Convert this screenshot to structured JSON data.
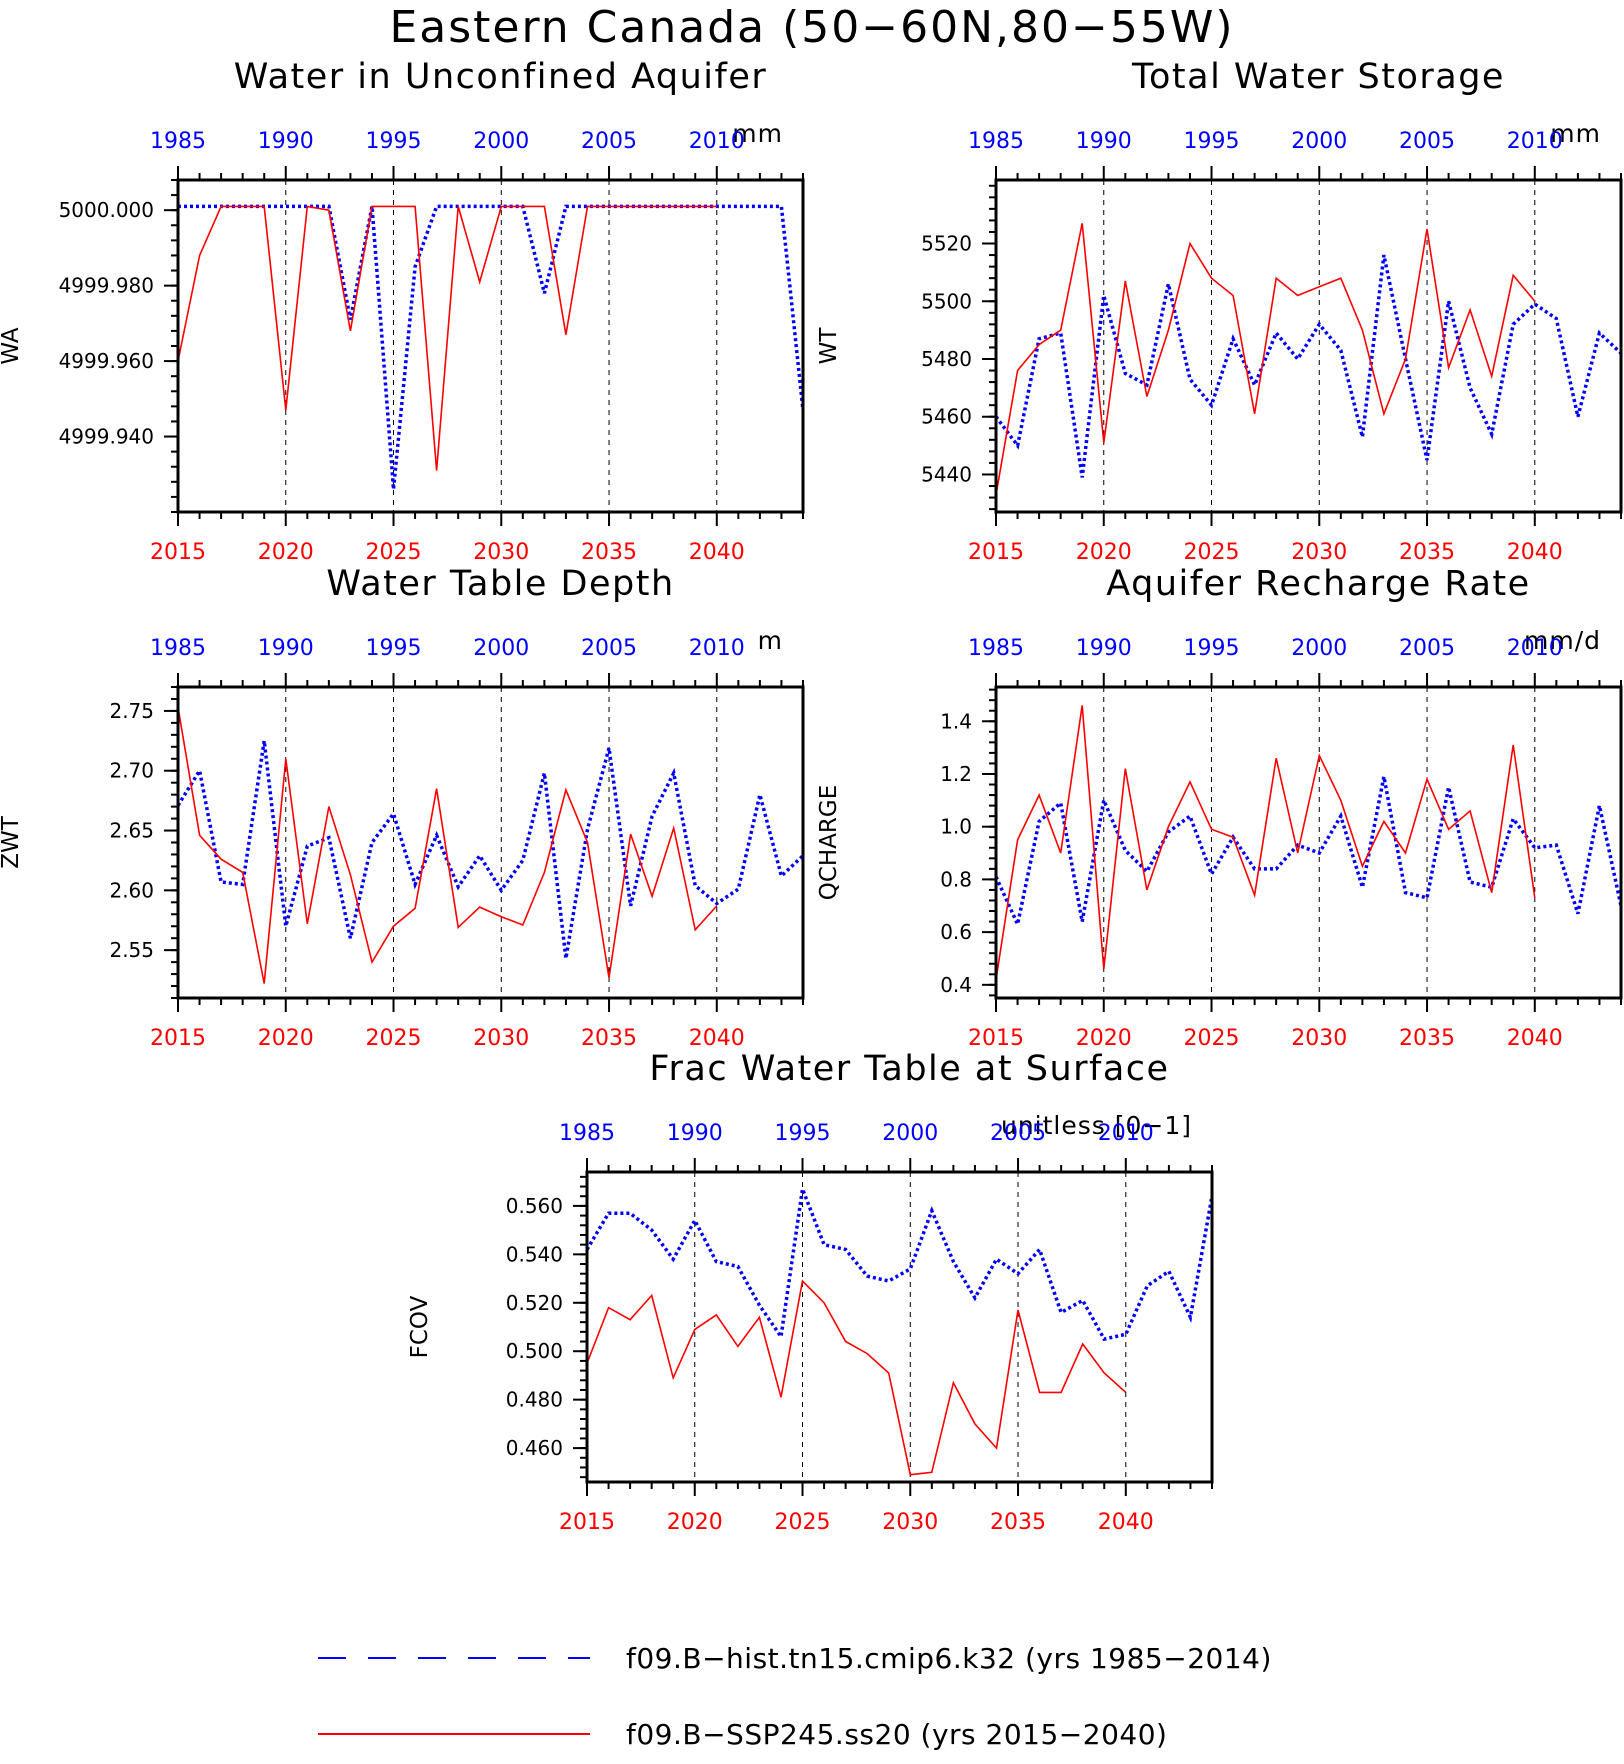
{
  "title": "Eastern Canada (50−60N,80−55W)",
  "colors": {
    "hist": "#0000ff",
    "ssp": "#ff0000",
    "axis": "#000000"
  },
  "legend": [
    {
      "key": "hist",
      "label": "f09.B−hist.tn15.cmip6.k32 (yrs 1985−2014)",
      "style": "dashed"
    },
    {
      "key": "ssp",
      "label": "f09.B−SSP245.ss20 (yrs 2015−2040)",
      "style": "solid"
    }
  ],
  "chart_data": [
    {
      "id": "wa",
      "type": "line",
      "title": "Water in Unconfined Aquifer",
      "units": "mm",
      "ylabel": "WA",
      "ylim": [
        4999.92,
        5000.008
      ],
      "yticks": [
        "4999.940",
        "4999.960",
        "4999.980",
        "5000.000"
      ],
      "x_bottom": {
        "range": [
          2015,
          2044
        ],
        "ticks": [
          "2015",
          "2020",
          "2025",
          "2030",
          "2035",
          "2040"
        ]
      },
      "x_top": {
        "range": [
          1985,
          2014
        ],
        "ticks": [
          "1985",
          "1990",
          "1995",
          "2000",
          "2005",
          "2010"
        ]
      },
      "series": [
        {
          "key": "hist",
          "years": [
            1985,
            1986,
            1987,
            1988,
            1989,
            1990,
            1991,
            1992,
            1993,
            1994,
            1995,
            1996,
            1997,
            1998,
            1999,
            2000,
            2001,
            2002,
            2003,
            2004,
            2005,
            2006,
            2007,
            2008,
            2009,
            2010,
            2011,
            2012,
            2013,
            2014
          ],
          "values": [
            5000.001,
            5000.001,
            5000.001,
            5000.001,
            5000.001,
            5000.001,
            5000.001,
            5000.001,
            4999.971,
            5000.001,
            4999.926,
            4999.985,
            5000.001,
            5000.001,
            5000.001,
            5000.001,
            5000.001,
            4999.978,
            5000.001,
            5000.001,
            5000.001,
            5000.001,
            5000.001,
            5000.001,
            5000.001,
            5000.001,
            5000.001,
            5000.001,
            5000.001,
            4999.947
          ]
        },
        {
          "key": "ssp",
          "years": [
            2015,
            2016,
            2017,
            2018,
            2019,
            2020,
            2021,
            2022,
            2023,
            2024,
            2025,
            2026,
            2027,
            2028,
            2029,
            2030,
            2031,
            2032,
            2033,
            2034,
            2035,
            2036,
            2037,
            2038,
            2039,
            2040
          ],
          "values": [
            4999.96,
            4999.988,
            5000.001,
            5000.001,
            5000.001,
            4999.947,
            5000.001,
            5000.0,
            4999.968,
            5000.001,
            5000.001,
            5000.001,
            4999.931,
            5000.001,
            4999.981,
            5000.001,
            5000.001,
            5000.001,
            4999.967,
            5000.001,
            5000.001,
            5000.001,
            5000.001,
            5000.001,
            5000.001,
            5000.001
          ]
        }
      ]
    },
    {
      "id": "wt",
      "type": "line",
      "title": "Total Water Storage",
      "units": "mm",
      "ylabel": "WT",
      "ylim": [
        5427,
        5542
      ],
      "yticks": [
        "5440",
        "5460",
        "5480",
        "5500",
        "5520"
      ],
      "x_bottom": {
        "range": [
          2015,
          2044
        ],
        "ticks": [
          "2015",
          "2020",
          "2025",
          "2030",
          "2035",
          "2040"
        ]
      },
      "x_top": {
        "range": [
          1985,
          2014
        ],
        "ticks": [
          "1985",
          "1990",
          "1995",
          "2000",
          "2005",
          "2010"
        ]
      },
      "series": [
        {
          "key": "hist",
          "years": [
            1985,
            1986,
            1987,
            1988,
            1989,
            1990,
            1991,
            1992,
            1993,
            1994,
            1995,
            1996,
            1997,
            1998,
            1999,
            2000,
            2001,
            2002,
            2003,
            2004,
            2005,
            2006,
            2007,
            2008,
            2009,
            2010,
            2011,
            2012,
            2013,
            2014
          ],
          "values": [
            5460,
            5450,
            5487,
            5489,
            5439,
            5502,
            5475,
            5471,
            5506,
            5473,
            5464,
            5487,
            5471,
            5489,
            5480,
            5492,
            5483,
            5453,
            5516,
            5480,
            5445,
            5500,
            5470,
            5454,
            5492,
            5499,
            5494,
            5460,
            5489,
            5482
          ]
        },
        {
          "key": "ssp",
          "years": [
            2015,
            2016,
            2017,
            2018,
            2019,
            2020,
            2021,
            2022,
            2023,
            2024,
            2025,
            2026,
            2027,
            2028,
            2029,
            2030,
            2031,
            2032,
            2033,
            2034,
            2035,
            2036,
            2037,
            2038,
            2039,
            2040
          ],
          "values": [
            5433,
            5476,
            5485,
            5490,
            5527,
            5451,
            5507,
            5467,
            5490,
            5520,
            5508,
            5502,
            5461,
            5508,
            5502,
            5505,
            5508,
            5490,
            5461,
            5480,
            5525,
            5477,
            5497,
            5474,
            5509,
            5500
          ]
        }
      ]
    },
    {
      "id": "zwt",
      "type": "line",
      "title": "Water Table Depth",
      "units": "m",
      "ylabel": "ZWT",
      "ylim": [
        2.51,
        2.77
      ],
      "yticks": [
        "2.55",
        "2.60",
        "2.65",
        "2.70",
        "2.75"
      ],
      "x_bottom": {
        "range": [
          2015,
          2044
        ],
        "ticks": [
          "2015",
          "2020",
          "2025",
          "2030",
          "2035",
          "2040"
        ]
      },
      "x_top": {
        "range": [
          1985,
          2014
        ],
        "ticks": [
          "1985",
          "1990",
          "1995",
          "2000",
          "2005",
          "2010"
        ]
      },
      "series": [
        {
          "key": "hist",
          "years": [
            1985,
            1986,
            1987,
            1988,
            1989,
            1990,
            1991,
            1992,
            1993,
            1994,
            1995,
            1996,
            1997,
            1998,
            1999,
            2000,
            2001,
            2002,
            2003,
            2004,
            2005,
            2006,
            2007,
            2008,
            2009,
            2010,
            2011,
            2012,
            2013,
            2014
          ],
          "values": [
            2.671,
            2.7,
            2.607,
            2.605,
            2.725,
            2.57,
            2.637,
            2.644,
            2.56,
            2.64,
            2.664,
            2.605,
            2.646,
            2.603,
            2.629,
            2.6,
            2.625,
            2.698,
            2.543,
            2.651,
            2.719,
            2.587,
            2.662,
            2.698,
            2.604,
            2.589,
            2.601,
            2.68,
            2.612,
            2.629
          ]
        },
        {
          "key": "ssp",
          "years": [
            2015,
            2016,
            2017,
            2018,
            2019,
            2020,
            2021,
            2022,
            2023,
            2024,
            2025,
            2026,
            2027,
            2028,
            2029,
            2030,
            2031,
            2032,
            2033,
            2034,
            2035,
            2036,
            2037,
            2038,
            2039,
            2040
          ],
          "values": [
            2.753,
            2.646,
            2.626,
            2.615,
            2.522,
            2.71,
            2.572,
            2.67,
            2.613,
            2.54,
            2.57,
            2.585,
            2.685,
            2.569,
            2.586,
            2.578,
            2.571,
            2.615,
            2.684,
            2.64,
            2.527,
            2.647,
            2.595,
            2.652,
            2.567,
            2.587
          ]
        }
      ]
    },
    {
      "id": "qcharge",
      "type": "line",
      "title": "Aquifer Recharge Rate",
      "units": "mm/d",
      "ylabel": "QCHARGE",
      "ylim": [
        0.35,
        1.53
      ],
      "yticks": [
        "0.4",
        "0.6",
        "0.8",
        "1.0",
        "1.2",
        "1.4"
      ],
      "x_bottom": {
        "range": [
          2015,
          2044
        ],
        "ticks": [
          "2015",
          "2020",
          "2025",
          "2030",
          "2035",
          "2040"
        ]
      },
      "x_top": {
        "range": [
          1985,
          2014
        ],
        "ticks": [
          "1985",
          "1990",
          "1995",
          "2000",
          "2005",
          "2010"
        ]
      },
      "series": [
        {
          "key": "hist",
          "years": [
            1985,
            1986,
            1987,
            1988,
            1989,
            1990,
            1991,
            1992,
            1993,
            1994,
            1995,
            1996,
            1997,
            1998,
            1999,
            2000,
            2001,
            2002,
            2003,
            2004,
            2005,
            2006,
            2007,
            2008,
            2009,
            2010,
            2011,
            2012,
            2013,
            2014
          ],
          "values": [
            0.81,
            0.63,
            1.02,
            1.09,
            0.64,
            1.1,
            0.91,
            0.83,
            0.98,
            1.04,
            0.82,
            0.96,
            0.84,
            0.84,
            0.93,
            0.9,
            1.04,
            0.77,
            1.19,
            0.75,
            0.73,
            1.15,
            0.79,
            0.77,
            1.03,
            0.92,
            0.93,
            0.67,
            1.08,
            0.7
          ]
        },
        {
          "key": "ssp",
          "years": [
            2015,
            2016,
            2017,
            2018,
            2019,
            2020,
            2021,
            2022,
            2023,
            2024,
            2025,
            2026,
            2027,
            2028,
            2029,
            2030,
            2031,
            2032,
            2033,
            2034,
            2035,
            2036,
            2037,
            2038,
            2039,
            2040
          ],
          "values": [
            0.42,
            0.95,
            1.12,
            0.9,
            1.46,
            0.46,
            1.22,
            0.76,
            1.0,
            1.17,
            0.99,
            0.96,
            0.74,
            1.26,
            0.9,
            1.27,
            1.1,
            0.85,
            1.02,
            0.9,
            1.18,
            0.99,
            1.06,
            0.75,
            1.31,
            0.73
          ]
        }
      ]
    },
    {
      "id": "fcov",
      "type": "line",
      "title": "Frac Water Table at Surface",
      "units": "unitless [0−1]",
      "ylabel": "FCOV",
      "ylim": [
        0.446,
        0.574
      ],
      "yticks": [
        "0.460",
        "0.480",
        "0.500",
        "0.520",
        "0.540",
        "0.560"
      ],
      "x_bottom": {
        "range": [
          2015,
          2044
        ],
        "ticks": [
          "2015",
          "2020",
          "2025",
          "2030",
          "2035",
          "2040"
        ]
      },
      "x_top": {
        "range": [
          1985,
          2014
        ],
        "ticks": [
          "1985",
          "1990",
          "1995",
          "2000",
          "2005",
          "2010"
        ]
      },
      "series": [
        {
          "key": "hist",
          "years": [
            1985,
            1986,
            1987,
            1988,
            1989,
            1990,
            1991,
            1992,
            1993,
            1994,
            1995,
            1996,
            1997,
            1998,
            1999,
            2000,
            2001,
            2002,
            2003,
            2004,
            2005,
            2006,
            2007,
            2008,
            2009,
            2010,
            2011,
            2012,
            2013,
            2014
          ],
          "values": [
            0.542,
            0.557,
            0.557,
            0.55,
            0.538,
            0.554,
            0.537,
            0.535,
            0.519,
            0.506,
            0.567,
            0.544,
            0.542,
            0.531,
            0.529,
            0.534,
            0.558,
            0.537,
            0.522,
            0.538,
            0.532,
            0.542,
            0.516,
            0.521,
            0.505,
            0.507,
            0.527,
            0.533,
            0.514,
            0.564
          ]
        },
        {
          "key": "ssp",
          "years": [
            2015,
            2016,
            2017,
            2018,
            2019,
            2020,
            2021,
            2022,
            2023,
            2024,
            2025,
            2026,
            2027,
            2028,
            2029,
            2030,
            2031,
            2032,
            2033,
            2034,
            2035,
            2036,
            2037,
            2038,
            2039,
            2040
          ],
          "values": [
            0.495,
            0.518,
            0.513,
            0.523,
            0.489,
            0.509,
            0.515,
            0.502,
            0.514,
            0.481,
            0.529,
            0.52,
            0.504,
            0.499,
            0.491,
            0.449,
            0.45,
            0.487,
            0.47,
            0.46,
            0.517,
            0.483,
            0.483,
            0.503,
            0.491,
            0.483
          ]
        }
      ]
    }
  ]
}
